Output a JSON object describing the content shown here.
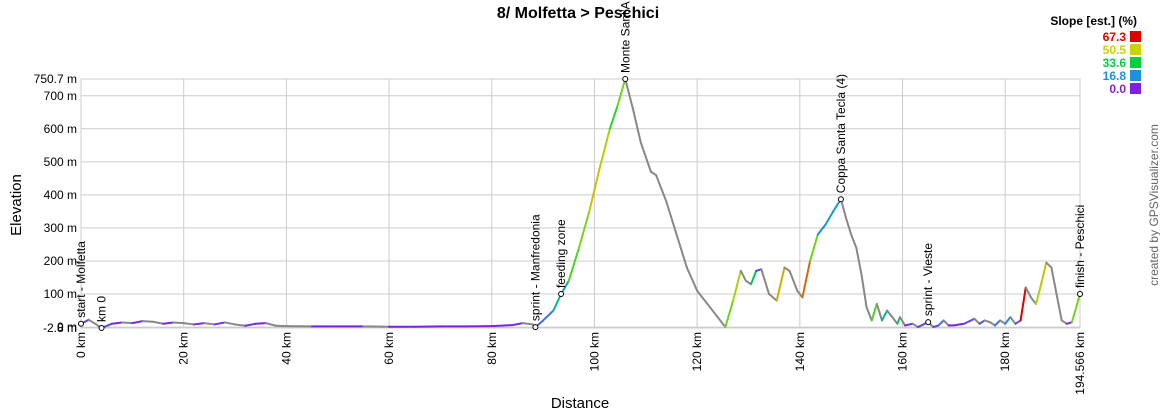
{
  "chart_data": {
    "type": "line",
    "title": "8/ Molfetta > Peschici",
    "x_label": "Distance",
    "y_label": "Elevation",
    "credit": "created by GPSVisualizer.com",
    "x": [
      0,
      1.5,
      3,
      4,
      6,
      8,
      10,
      12,
      14,
      16,
      18,
      20,
      22,
      24,
      26,
      28,
      30,
      32,
      34,
      36,
      38,
      40,
      45,
      50,
      55,
      60,
      65,
      70,
      75,
      80,
      84,
      86,
      88,
      88.5,
      90,
      92,
      93.5,
      95,
      97,
      99,
      101,
      103,
      104.5,
      106,
      107.5,
      109,
      111,
      112,
      114,
      116,
      118,
      120,
      122,
      124,
      125.5,
      127,
      128.5,
      129.5,
      130.5,
      131.5,
      132.5,
      134,
      135.5,
      137,
      138,
      139.5,
      140.5,
      142,
      143.5,
      145,
      146.5,
      148,
      149,
      150,
      151,
      152,
      153,
      154,
      155,
      156,
      157,
      158,
      159,
      159.5,
      160.5,
      162,
      163,
      165,
      166,
      167,
      168,
      169,
      170,
      172,
      174,
      175,
      176,
      177,
      178,
      179,
      180,
      181,
      182,
      183,
      184,
      185,
      186,
      187,
      188,
      189,
      190,
      191,
      192,
      193,
      194.566
    ],
    "series": [
      {
        "name": "Elevation",
        "color": "#888888",
        "values": [
          10,
          22,
          8,
          -2.8,
          10,
          14,
          12,
          18,
          16,
          10,
          14,
          12,
          8,
          12,
          8,
          14,
          8,
          4,
          10,
          12,
          4,
          3,
          2,
          2,
          2,
          1,
          1,
          2,
          2,
          3,
          6,
          12,
          8,
          0,
          20,
          50,
          100,
          140,
          240,
          350,
          480,
          600,
          670,
          750.7,
          660,
          560,
          470,
          460,
          380,
          280,
          180,
          110,
          70,
          30,
          0,
          80,
          170,
          140,
          130,
          170,
          175,
          100,
          80,
          180,
          170,
          110,
          90,
          200,
          280,
          310,
          350,
          387,
          330,
          280,
          240,
          160,
          60,
          20,
          70,
          20,
          50,
          30,
          10,
          30,
          5,
          10,
          0,
          15,
          0,
          5,
          20,
          5,
          5,
          10,
          25,
          10,
          20,
          15,
          5,
          20,
          10,
          30,
          10,
          20,
          120,
          90,
          70,
          130,
          195,
          180,
          100,
          20,
          10,
          15,
          100
        ]
      }
    ],
    "xlim": [
      0,
      194.566
    ],
    "ylim": [
      -2.8,
      750.7
    ],
    "xticks": [
      {
        "value": 0,
        "label": "0 km"
      },
      {
        "value": 20,
        "label": "20 km"
      },
      {
        "value": 40,
        "label": "40 km"
      },
      {
        "value": 60,
        "label": "60 km"
      },
      {
        "value": 80,
        "label": "80 km"
      },
      {
        "value": 100,
        "label": "100 km"
      },
      {
        "value": 120,
        "label": "120 km"
      },
      {
        "value": 140,
        "label": "140 km"
      },
      {
        "value": 160,
        "label": "160 km"
      },
      {
        "value": 180,
        "label": "180 km"
      },
      {
        "value": 194.566,
        "label": "194.566 km"
      }
    ],
    "yticks": [
      {
        "value": -2.8,
        "label": "-2.8 m"
      },
      {
        "value": 0,
        "label": "0 m"
      },
      {
        "value": 100,
        "label": "100 m"
      },
      {
        "value": 200,
        "label": "200 m"
      },
      {
        "value": 300,
        "label": "300 m"
      },
      {
        "value": 400,
        "label": "400 m"
      },
      {
        "value": 500,
        "label": "500 m"
      },
      {
        "value": 600,
        "label": "600 m"
      },
      {
        "value": 700,
        "label": "700 m"
      },
      {
        "value": 750.7,
        "label": "750.7 m"
      }
    ],
    "grid": true,
    "waypoints": [
      {
        "name": "start - Molfetta",
        "x": 0,
        "y": 10
      },
      {
        "name": "km 0",
        "x": 4,
        "y": -2.8
      },
      {
        "name": "sprint - Manfredonia",
        "x": 88.5,
        "y": 0
      },
      {
        "name": "feeding zone",
        "x": 93.5,
        "y": 100
      },
      {
        "name": "Monte Sant'A",
        "x": 106,
        "y": 750.7
      },
      {
        "name": "Coppa Santa Tecla (4)",
        "x": 148,
        "y": 387
      },
      {
        "name": "sprint - Vieste",
        "x": 165,
        "y": 15
      },
      {
        "name": "finish - Peschici",
        "x": 194.566,
        "y": 100
      }
    ],
    "slope_legend": {
      "title": "Slope [est.] (%)",
      "legend_position": "top-right",
      "items": [
        {
          "value": 67.3,
          "color": "#e00000"
        },
        {
          "value": 50.5,
          "color": "#c8d400"
        },
        {
          "value": 33.6,
          "color": "#00d040"
        },
        {
          "value": 16.8,
          "color": "#1e90e0"
        },
        {
          "value": {
            "value": 0,
            "label": "0.0"
          },
          "color": "#8020e0"
        }
      ]
    }
  }
}
